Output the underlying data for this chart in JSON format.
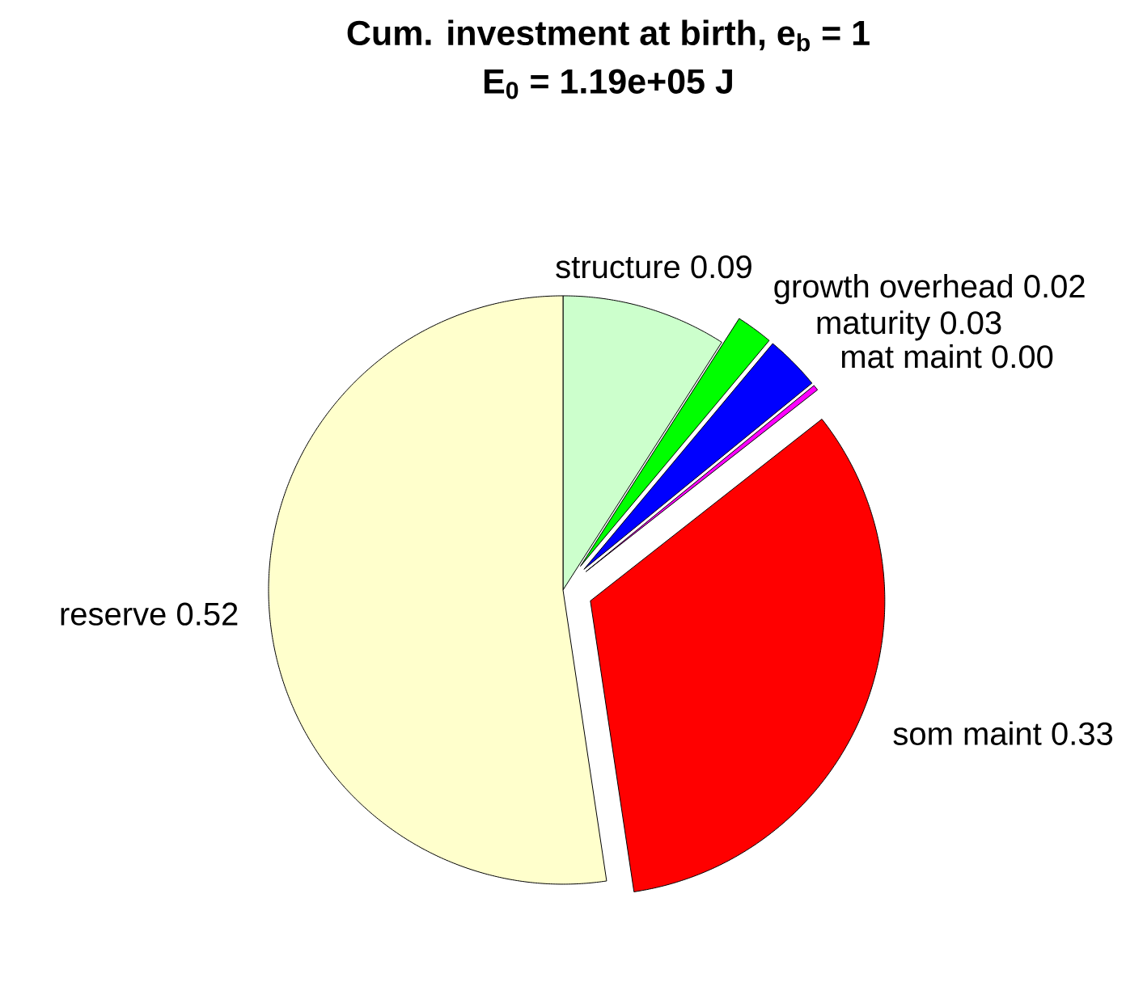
{
  "chart_data": {
    "type": "pie",
    "title": "Cum. investment at birth, e$_{b}$ = 1",
    "subtitle": "E$_{0}$ = 1.19e+05 J",
    "categories": [
      "structure",
      "growth overhead",
      "maturity",
      "mat maint",
      "som maint",
      "reserve"
    ],
    "values": [
      0.09,
      0.02,
      0.03,
      0.003,
      0.33,
      0.52
    ],
    "value_labels": [
      "0.09",
      "0.02",
      "0.03",
      "0.00",
      "0.33",
      "0.52"
    ],
    "colors": [
      "#ccffcc",
      "#00ff00",
      "#0000ff",
      "#ff00ff",
      "#ff0000",
      "#ffffcc"
    ]
  }
}
